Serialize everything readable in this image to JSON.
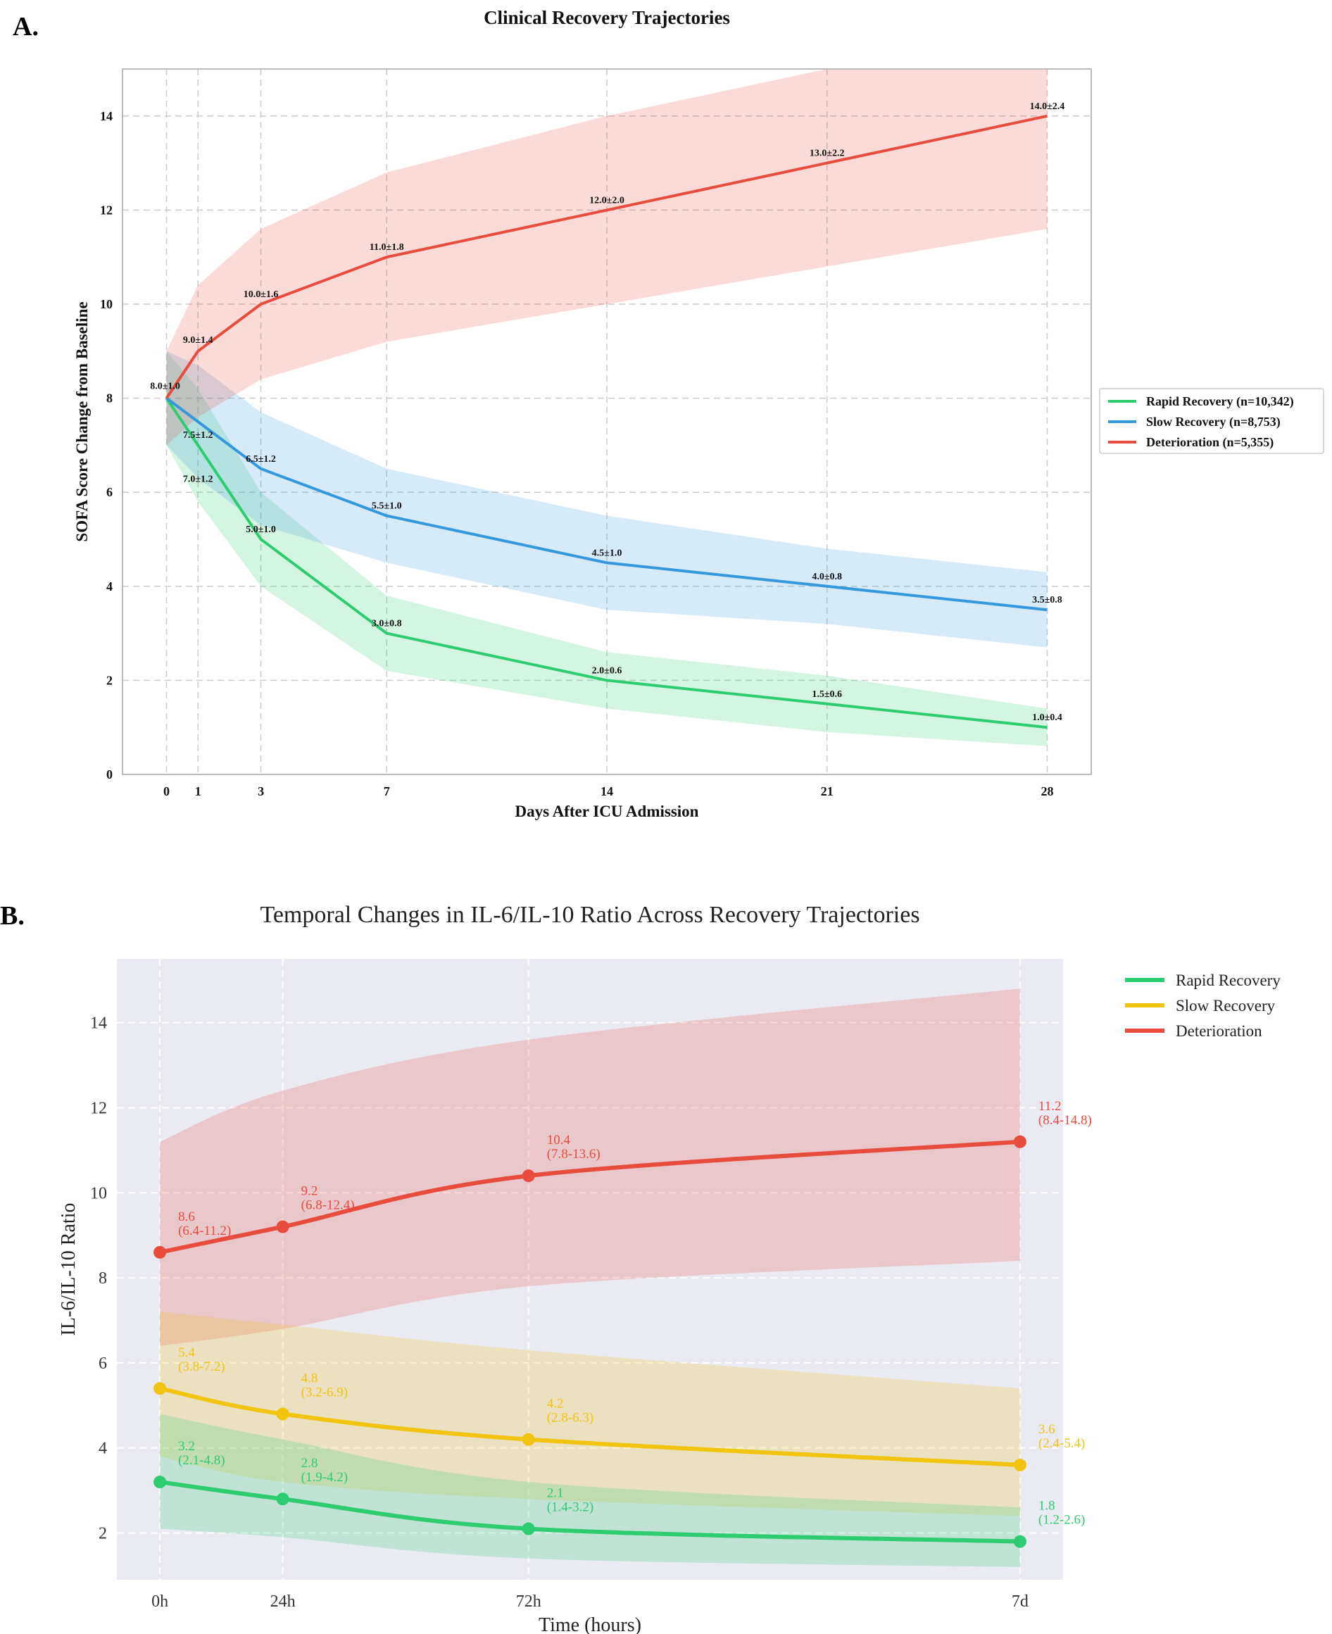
{
  "chart_data": [
    {
      "panel": "A.",
      "type": "line",
      "title": "Clinical Recovery Trajectories",
      "xlabel": "Days After ICU Admission",
      "ylabel": "SOFA Score Change from Baseline",
      "x": [
        0,
        1,
        3,
        7,
        14,
        21,
        28
      ],
      "xticks": [
        "0",
        "1",
        "3",
        "7",
        "14",
        "21",
        "28"
      ],
      "yticks": [
        "0",
        "2",
        "4",
        "6",
        "8",
        "10",
        "12",
        "14"
      ],
      "xlim": [
        -1.4,
        29.4
      ],
      "ylim": [
        0,
        15
      ],
      "grid": true,
      "legend_position": "right",
      "series": [
        {
          "name": "Rapid Recovery (n=10,342)",
          "color": "#2ecc71",
          "values": [
            8.0,
            7.0,
            5.0,
            3.0,
            2.0,
            1.5,
            1.0
          ],
          "sd": [
            1.0,
            1.2,
            1.0,
            0.8,
            0.6,
            0.6,
            0.4
          ],
          "labels": [
            "8.0±1.0",
            "7.0±1.2",
            "5.0±1.0",
            "3.0±0.8",
            "2.0±0.6",
            "1.5±0.6",
            "1.0±0.4"
          ]
        },
        {
          "name": "Slow Recovery (n=8,753)",
          "color": "#3498db",
          "values": [
            8.0,
            7.5,
            6.5,
            5.5,
            4.5,
            4.0,
            3.5
          ],
          "sd": [
            1.0,
            1.2,
            1.2,
            1.0,
            1.0,
            0.8,
            0.8
          ],
          "labels": [
            "8.0±1.0",
            "7.5±1.2",
            "6.5±1.2",
            "5.5±1.0",
            "4.5±1.0",
            "4.0±0.8",
            "3.5±0.8"
          ]
        },
        {
          "name": "Deterioration (n=5,355)",
          "color": "#e74c3c",
          "values": [
            8.0,
            9.0,
            10.0,
            11.0,
            12.0,
            13.0,
            14.0
          ],
          "sd": [
            1.0,
            1.4,
            1.6,
            1.8,
            2.0,
            2.2,
            2.4
          ],
          "labels": [
            "8.0±1.0",
            "9.0±1.4",
            "10.0±1.6",
            "11.0±1.8",
            "12.0±2.0",
            "13.0±2.2",
            "14.0±2.4"
          ]
        }
      ]
    },
    {
      "panel": "B.",
      "type": "line",
      "title": "Temporal Changes in IL-6/IL-10 Ratio Across Recovery Trajectories",
      "xlabel": "Time (hours)",
      "ylabel": "IL-6/IL-10 Ratio",
      "x": [
        0,
        24,
        72,
        168
      ],
      "xticks": [
        "0h",
        "24h",
        "72h",
        "7d"
      ],
      "yticks": [
        "2",
        "4",
        "6",
        "8",
        "10",
        "12",
        "14"
      ],
      "xlim": [
        -8.4,
        176.4
      ],
      "ylim": [
        0.9,
        15.5
      ],
      "grid": true,
      "legend_position": "top-right outside",
      "series": [
        {
          "name": "Rapid Recovery",
          "color": "#2ecc71",
          "values": [
            3.2,
            2.8,
            2.1,
            1.8
          ],
          "lower": [
            2.1,
            1.9,
            1.4,
            1.2
          ],
          "upper": [
            4.8,
            4.2,
            3.2,
            2.6
          ],
          "value_labels": [
            "3.2",
            "2.8",
            "2.1",
            "1.8"
          ],
          "range_labels": [
            "(2.1-4.8)",
            "(1.9-4.2)",
            "(1.4-3.2)",
            "(1.2-2.6)"
          ]
        },
        {
          "name": "Slow Recovery",
          "color": "#f1c40f",
          "values": [
            5.4,
            4.8,
            4.2,
            3.6
          ],
          "lower": [
            3.8,
            3.2,
            2.8,
            2.4
          ],
          "upper": [
            7.2,
            6.9,
            6.3,
            5.4
          ],
          "value_labels": [
            "5.4",
            "4.8",
            "4.2",
            "3.6"
          ],
          "range_labels": [
            "(3.8-7.2)",
            "(3.2-6.9)",
            "(2.8-6.3)",
            "(2.4-5.4)"
          ]
        },
        {
          "name": "Deterioration",
          "color": "#e74c3c",
          "values": [
            8.6,
            9.2,
            10.4,
            11.2
          ],
          "lower": [
            6.4,
            6.8,
            7.8,
            8.4
          ],
          "upper": [
            11.2,
            12.4,
            13.6,
            14.8
          ],
          "value_labels": [
            "8.6",
            "9.2",
            "10.4",
            "11.2"
          ],
          "range_labels": [
            "(6.4-11.2)",
            "(6.8-12.4)",
            "(7.8-13.6)",
            "(8.4-14.8)"
          ]
        }
      ]
    }
  ]
}
